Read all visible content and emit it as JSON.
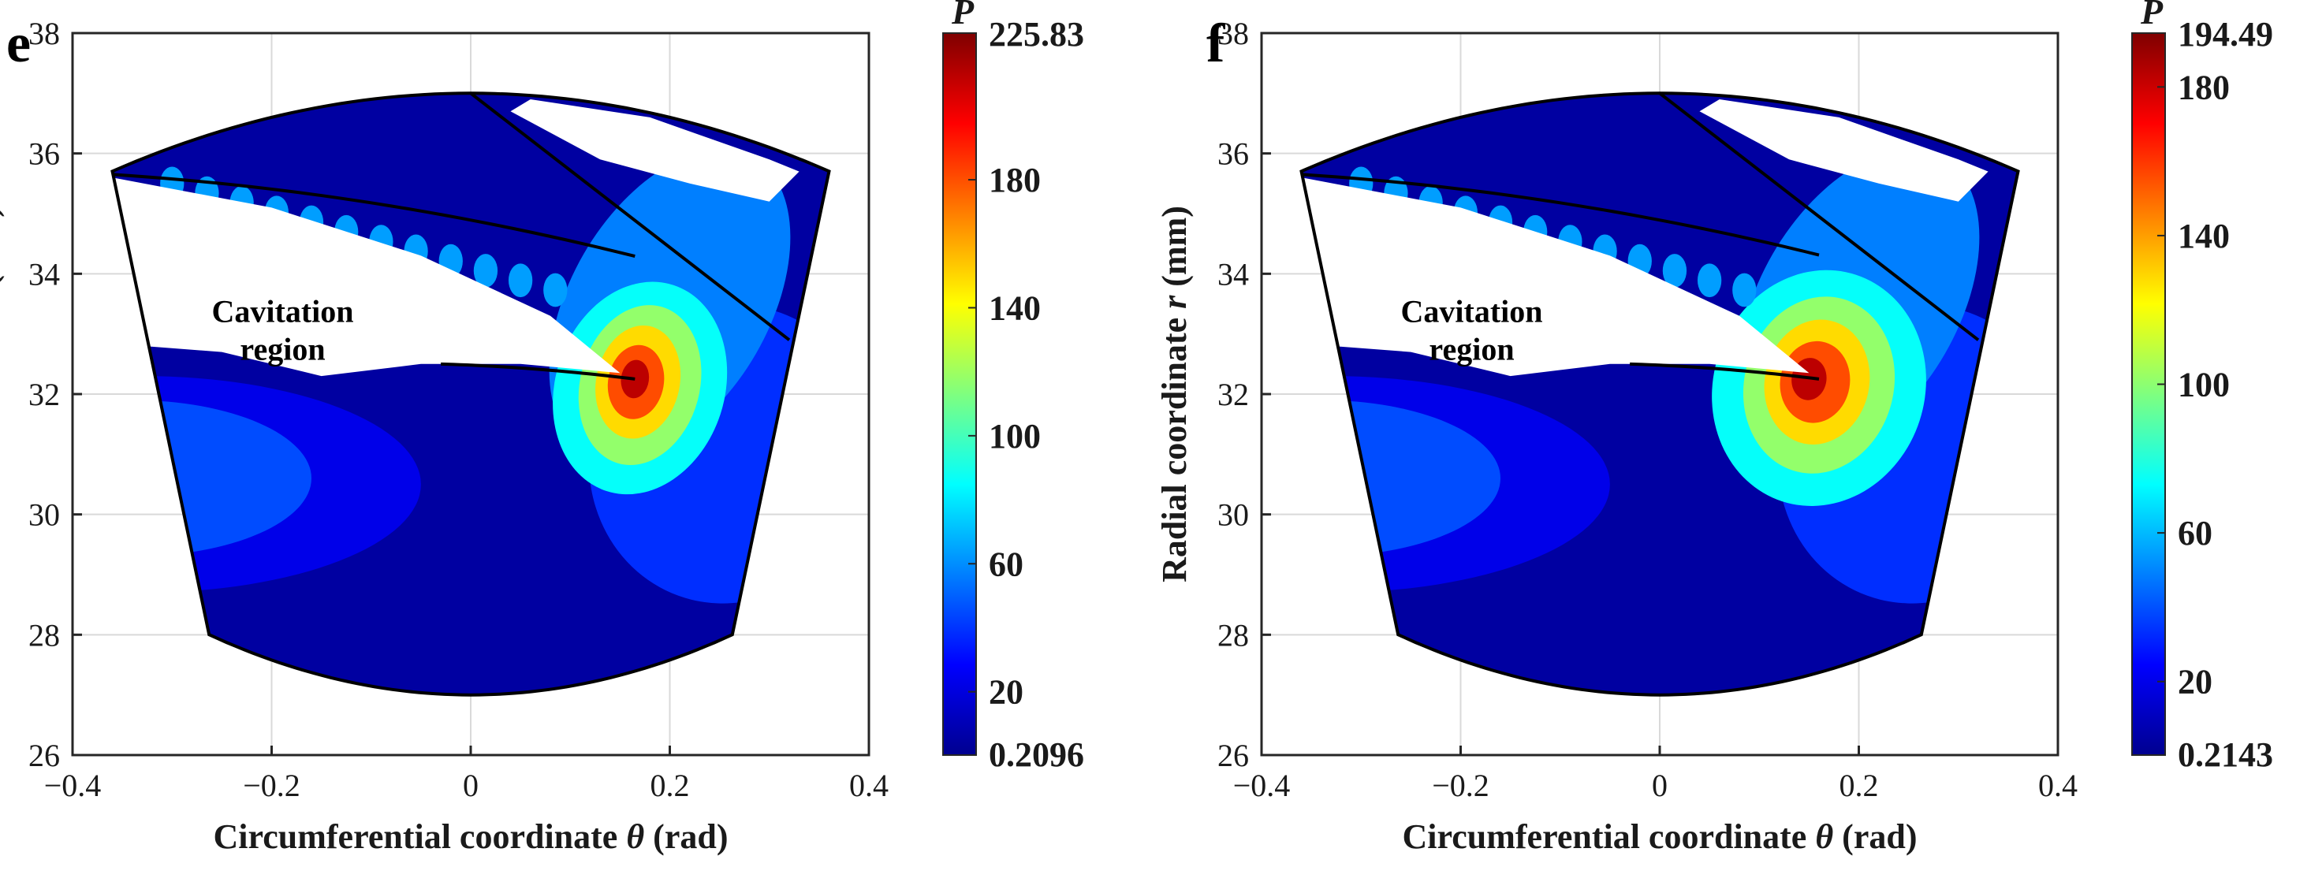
{
  "chart_data": [
    {
      "type": "contour",
      "panel_label": "e",
      "xlabel_prefix": "Circumferential coordinate ",
      "xlabel_symbol": "θ",
      "xlabel_suffix": " (rad)",
      "ylabel_prefix": "Radial coordinate ",
      "ylabel_symbol": "r",
      "ylabel_suffix": " (mm)",
      "xlim": [
        -0.4,
        0.4
      ],
      "ylim": [
        26,
        38
      ],
      "xticks": [
        "−0.4",
        "−0.2",
        "0",
        "0.2",
        "0.4"
      ],
      "xtick_values": [
        -0.4,
        -0.2,
        0,
        0.2,
        0.4
      ],
      "yticks": [
        "26",
        "28",
        "30",
        "32",
        "34",
        "36",
        "38"
      ],
      "ytick_values": [
        26,
        28,
        30,
        32,
        34,
        36,
        38
      ],
      "grid": true,
      "colorbar": {
        "title": "P",
        "min": 0.2096,
        "max": 225.83,
        "min_label": "0.2096",
        "max_label": "225.83",
        "tick_values": [
          20,
          60,
          100,
          140,
          180
        ],
        "tick_labels": [
          "20",
          "60",
          "100",
          "140",
          "180"
        ]
      },
      "annotation": {
        "line1": "Cavitation",
        "line2": "region",
        "x": -0.28,
        "y": 33.2
      },
      "peak": {
        "x": 0.165,
        "y": 32.25,
        "value": 225.83
      },
      "domain": {
        "theta_min": -0.36,
        "theta_max": 0.36,
        "r_inner": 27.0,
        "r_outer": 37.0
      }
    },
    {
      "type": "contour",
      "panel_label": "f",
      "xlabel_prefix": "Circumferential coordinate ",
      "xlabel_symbol": "θ",
      "xlabel_suffix": " (rad)",
      "ylabel_prefix": "Radial coordinate ",
      "ylabel_symbol": "r",
      "ylabel_suffix": " (mm)",
      "xlim": [
        -0.4,
        0.4
      ],
      "ylim": [
        26,
        38
      ],
      "xticks": [
        "−0.4",
        "−0.2",
        "0",
        "0.2",
        "0.4"
      ],
      "xtick_values": [
        -0.4,
        -0.2,
        0,
        0.2,
        0.4
      ],
      "yticks": [
        "26",
        "28",
        "30",
        "32",
        "34",
        "36",
        "38"
      ],
      "ytick_values": [
        26,
        28,
        30,
        32,
        34,
        36,
        38
      ],
      "grid": true,
      "colorbar": {
        "title": "P",
        "min": 0.2143,
        "max": 194.49,
        "min_label": "0.2143",
        "max_label": "194.49",
        "tick_values": [
          20,
          60,
          100,
          140,
          180
        ],
        "tick_labels": [
          "20",
          "60",
          "100",
          "140",
          "180"
        ]
      },
      "annotation": {
        "line1": "Cavitation",
        "line2": "region",
        "x": -0.28,
        "y": 33.2
      },
      "peak": {
        "x": 0.16,
        "y": 32.25,
        "value": 194.49
      },
      "domain": {
        "theta_min": -0.36,
        "theta_max": 0.36,
        "r_inner": 27.0,
        "r_outer": 37.0
      }
    }
  ],
  "colors": {
    "jet": [
      "#00008f",
      "#0000ff",
      "#007fff",
      "#00ffff",
      "#7fff7f",
      "#ffff00",
      "#ff7f00",
      "#ff0000",
      "#7f0000"
    ],
    "cavitation": "#ffffff",
    "outline": "#000000",
    "grid": "#d9d9d9"
  }
}
